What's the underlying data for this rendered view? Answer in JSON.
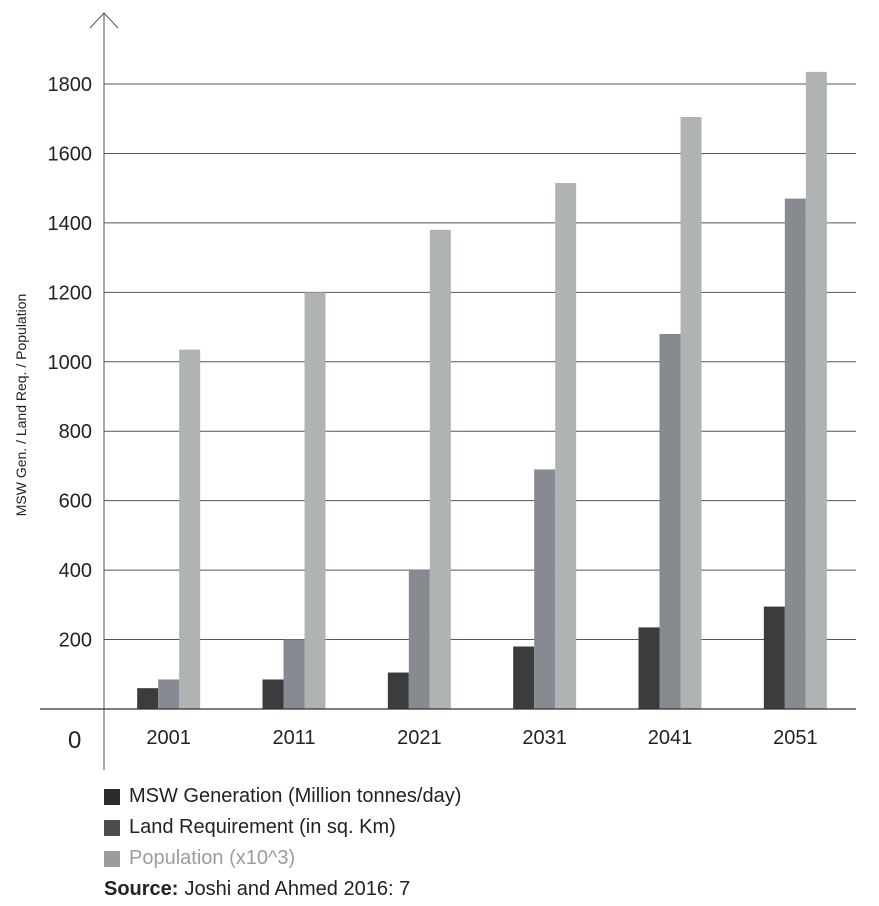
{
  "chart_data": {
    "type": "bar",
    "ylabel": "MSW Gen. / Land Req. / Population",
    "xlabel": "",
    "zero_label": "0",
    "categories": [
      "2001",
      "2011",
      "2021",
      "2031",
      "2041",
      "2051"
    ],
    "ylim": [
      0,
      1800
    ],
    "yticks": [
      200,
      400,
      600,
      800,
      1000,
      1200,
      1400,
      1600,
      1800
    ],
    "grid": true,
    "legend_position": "bottom-left",
    "series": [
      {
        "name": "MSW Generation (Million tonnes/day)",
        "color": "#3a3c3e",
        "values": [
          60,
          85,
          105,
          180,
          235,
          295
        ]
      },
      {
        "name": "Land Requirement (in sq. Km)",
        "color": "#878a91",
        "values": [
          85,
          200,
          400,
          690,
          1080,
          1470
        ]
      },
      {
        "name": "Population (x10^3)",
        "color": "#b0b3b4",
        "values": [
          1035,
          1200,
          1380,
          1515,
          1705,
          1835
        ]
      }
    ],
    "legend_swatch_colors": [
      "#2a2b2d",
      "#4a4c4f",
      "#9a9da0"
    ]
  },
  "source": {
    "label": "Source:",
    "text": "Joshi and Ahmed 2016: 7"
  }
}
